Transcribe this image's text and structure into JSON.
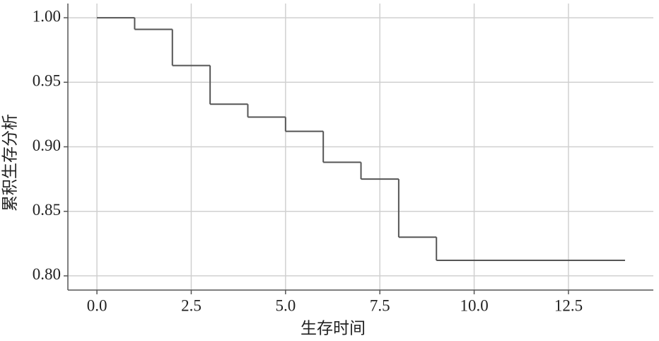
{
  "chart_data": {
    "type": "line",
    "step": "post",
    "x_label": "生存时间",
    "y_label": "累积生存分析",
    "x": [
      0,
      1,
      2,
      3,
      4,
      5,
      6,
      7,
      8,
      9,
      14
    ],
    "series": [
      {
        "color": "#555555",
        "values": [
          1.0,
          0.991,
          0.963,
          0.933,
          0.923,
          0.912,
          0.888,
          0.875,
          0.83,
          0.812,
          0.812
        ]
      }
    ],
    "xlim": [
      -0.77,
      14.75
    ],
    "ylim": [
      0.789,
      1.011
    ],
    "xticks": [
      {
        "value": 0,
        "label": "0.0"
      },
      {
        "value": 2.5,
        "label": "2.5"
      },
      {
        "value": 5,
        "label": "5.0"
      },
      {
        "value": 7.5,
        "label": "7.5"
      },
      {
        "value": 10,
        "label": "10.0"
      },
      {
        "value": 12.5,
        "label": "12.5"
      }
    ],
    "yticks": [
      {
        "value": 0.8,
        "label": "0.80"
      },
      {
        "value": 0.85,
        "label": "0.85"
      },
      {
        "value": 0.9,
        "label": "0.90"
      },
      {
        "value": 0.95,
        "label": "0.95"
      },
      {
        "value": 1.0,
        "label": "1.00"
      }
    ],
    "grid": true
  }
}
